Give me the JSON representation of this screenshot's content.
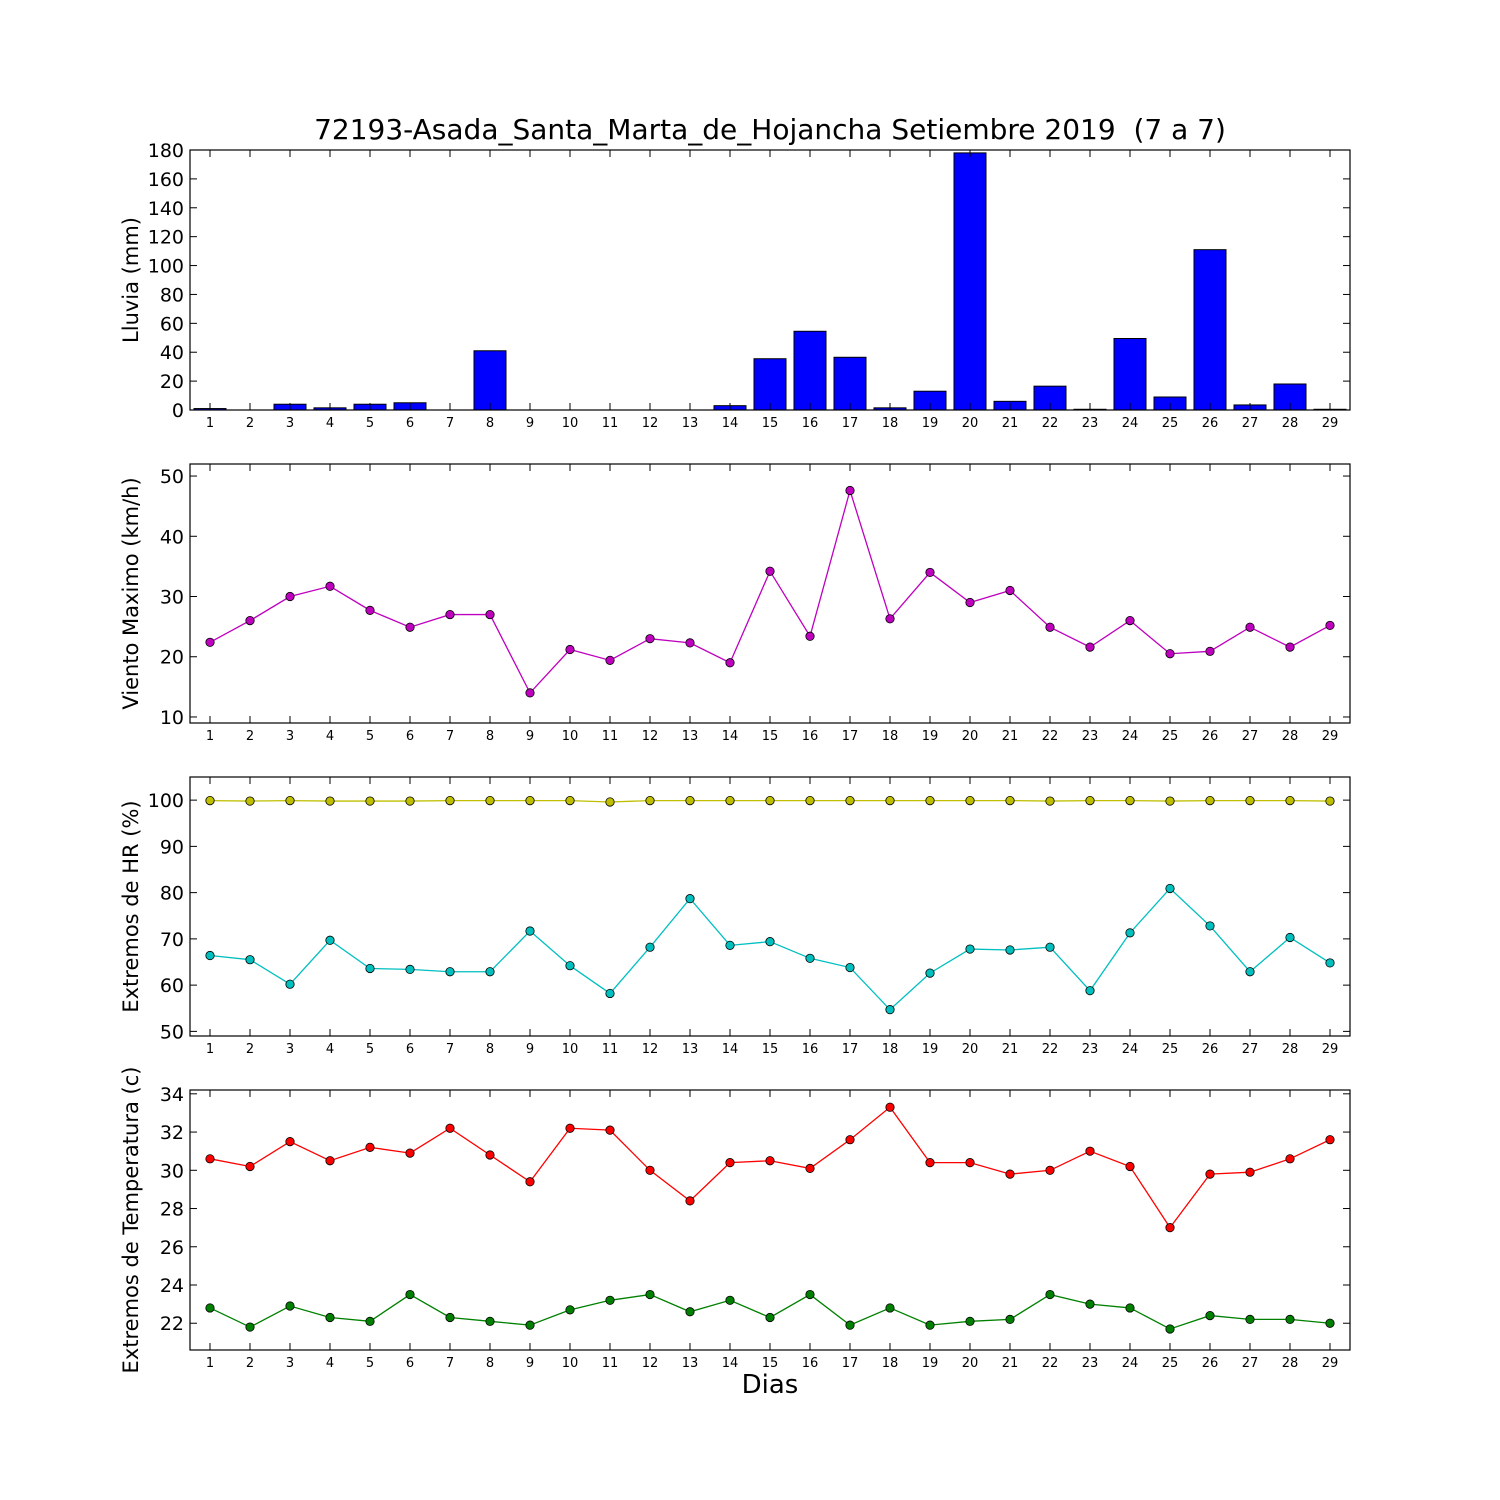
{
  "figure": {
    "title": "72193-Asada_Santa_Marta_de_Hojancha Setiembre 2019  (7 a 7)",
    "xlabel": "Dias"
  },
  "chart_data": [
    {
      "type": "bar",
      "ylabel": "Lluvia (mm)",
      "ylim": [
        0,
        180
      ],
      "yticks": [
        0,
        20,
        40,
        60,
        80,
        100,
        120,
        140,
        160,
        180
      ],
      "xlim": [
        0.5,
        29.5
      ],
      "categories": [
        1,
        2,
        3,
        4,
        5,
        6,
        7,
        8,
        9,
        10,
        11,
        12,
        13,
        14,
        15,
        16,
        17,
        18,
        19,
        20,
        21,
        22,
        23,
        24,
        25,
        26,
        27,
        28,
        29
      ],
      "color": "#0000ff",
      "values": [
        1.0,
        0,
        4.0,
        1.5,
        4.0,
        5.0,
        0,
        41.0,
        0,
        0,
        0,
        0,
        0,
        3.0,
        35.5,
        54.5,
        36.5,
        1.5,
        13.0,
        178.0,
        6.0,
        16.5,
        0.5,
        49.5,
        9.0,
        111.0,
        3.5,
        18.0,
        0.5
      ]
    },
    {
      "type": "line",
      "ylabel": "Viento Maximo (km/h)",
      "ylim": [
        9,
        52
      ],
      "yticks": [
        10,
        20,
        30,
        40,
        50
      ],
      "xlim": [
        0.5,
        29.5
      ],
      "x": [
        1,
        2,
        3,
        4,
        5,
        6,
        7,
        8,
        9,
        10,
        11,
        12,
        13,
        14,
        15,
        16,
        17,
        18,
        19,
        20,
        21,
        22,
        23,
        24,
        25,
        26,
        27,
        28,
        29
      ],
      "series": [
        {
          "color": "#bf00bf",
          "values": [
            22.4,
            26.0,
            30.0,
            31.7,
            27.7,
            24.9,
            27.0,
            27.0,
            14.0,
            21.2,
            19.4,
            23.0,
            22.3,
            19.0,
            34.2,
            23.4,
            47.6,
            26.3,
            34.0,
            29.0,
            31.0,
            24.9,
            21.6,
            26.0,
            20.5,
            20.9,
            24.9,
            21.6,
            25.2
          ]
        }
      ]
    },
    {
      "type": "line",
      "ylabel": "Extremos de HR (%)",
      "ylim": [
        49,
        105
      ],
      "yticks": [
        50,
        60,
        70,
        80,
        90,
        100
      ],
      "xlim": [
        0.5,
        29.5
      ],
      "x": [
        1,
        2,
        3,
        4,
        5,
        6,
        7,
        8,
        9,
        10,
        11,
        12,
        13,
        14,
        15,
        16,
        17,
        18,
        19,
        20,
        21,
        22,
        23,
        24,
        25,
        26,
        27,
        28,
        29
      ],
      "series": [
        {
          "color": "#bfbf00",
          "values": [
            99.9,
            99.8,
            99.9,
            99.8,
            99.8,
            99.8,
            99.9,
            99.9,
            99.9,
            99.9,
            99.6,
            99.9,
            99.9,
            99.9,
            99.9,
            99.9,
            99.9,
            99.9,
            99.9,
            99.9,
            99.9,
            99.8,
            99.9,
            99.9,
            99.8,
            99.9,
            99.9,
            99.9,
            99.8
          ]
        },
        {
          "color": "#00bfbf",
          "values": [
            66.4,
            65.5,
            60.2,
            69.7,
            63.6,
            63.4,
            62.9,
            62.9,
            71.7,
            64.2,
            58.2,
            68.2,
            78.7,
            68.6,
            69.4,
            65.8,
            63.8,
            54.7,
            62.6,
            67.8,
            67.6,
            68.2,
            58.8,
            71.3,
            80.9,
            72.8,
            62.9,
            70.3,
            64.8
          ]
        }
      ]
    },
    {
      "type": "line",
      "ylabel": "Extremos de Temperatura (c)",
      "ylim": [
        20.6,
        34.2
      ],
      "yticks": [
        22,
        24,
        26,
        28,
        30,
        32,
        34
      ],
      "xlim": [
        0.5,
        29.5
      ],
      "x": [
        1,
        2,
        3,
        4,
        5,
        6,
        7,
        8,
        9,
        10,
        11,
        12,
        13,
        14,
        15,
        16,
        17,
        18,
        19,
        20,
        21,
        22,
        23,
        24,
        25,
        26,
        27,
        28,
        29
      ],
      "series": [
        {
          "color": "#ff0000",
          "values": [
            30.6,
            30.2,
            31.5,
            30.5,
            31.2,
            30.9,
            32.2,
            30.8,
            29.4,
            32.2,
            32.1,
            30.0,
            28.4,
            30.4,
            30.5,
            30.1,
            31.6,
            33.3,
            30.4,
            30.4,
            29.8,
            30.0,
            31.0,
            30.2,
            27.0,
            29.8,
            29.9,
            30.6,
            31.6
          ]
        },
        {
          "color": "#008000",
          "values": [
            22.8,
            21.8,
            22.9,
            22.3,
            22.1,
            23.5,
            22.3,
            22.1,
            21.9,
            22.7,
            23.2,
            23.5,
            22.6,
            23.2,
            22.3,
            23.5,
            21.9,
            22.8,
            21.9,
            22.1,
            22.2,
            23.5,
            23.0,
            22.8,
            21.7,
            22.4,
            22.2,
            22.2,
            22.0
          ]
        }
      ]
    }
  ]
}
